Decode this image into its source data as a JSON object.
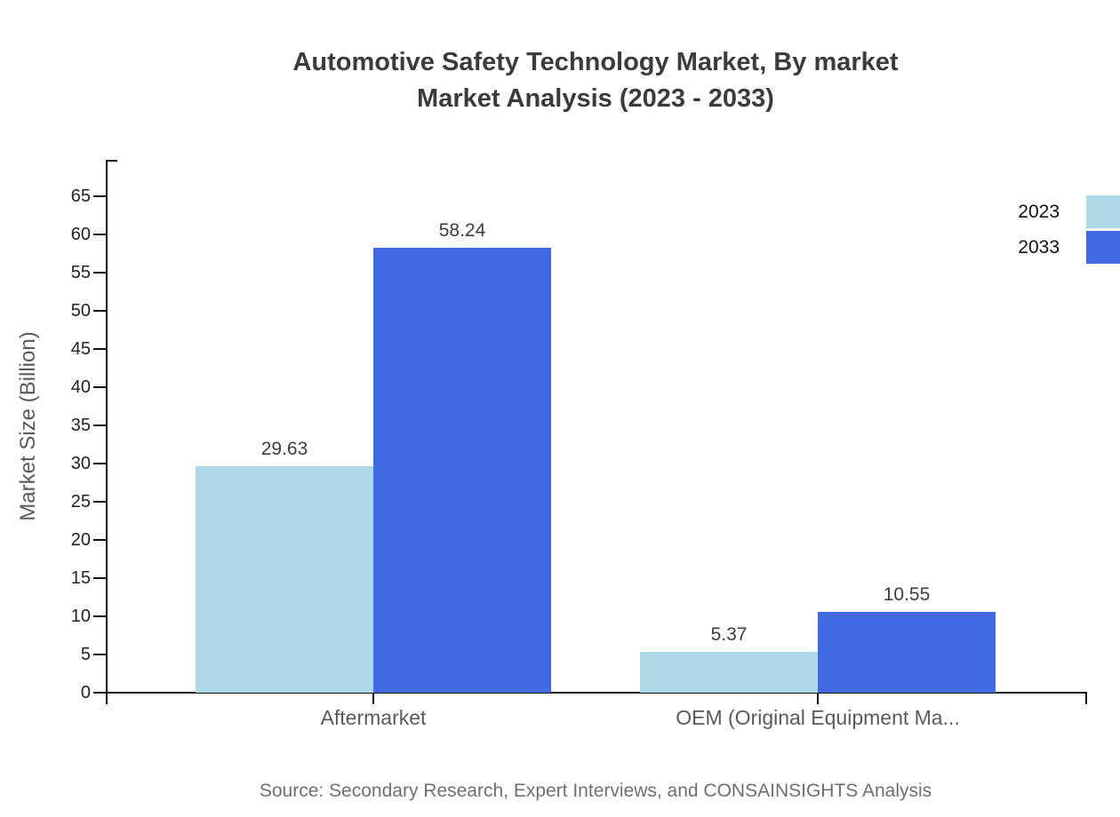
{
  "chart_data": {
    "type": "bar",
    "title": "Automotive Safety Technology Market, By market",
    "subtitle": "Market Analysis (2023 - 2033)",
    "ylabel": "Market Size (Billion)",
    "categories": [
      "Aftermarket",
      "OEM (Original Equipment Ma..."
    ],
    "series": [
      {
        "name": "2023",
        "color": "#ADD8E6",
        "values": [
          29.63,
          5.37
        ]
      },
      {
        "name": "2033",
        "color": "#4169E1",
        "values": [
          58.24,
          10.55
        ]
      }
    ],
    "value_labels": [
      [
        "29.63",
        "5.37"
      ],
      [
        "58.24",
        "10.55"
      ]
    ],
    "y_ticks": [
      0,
      5,
      10,
      15,
      20,
      25,
      30,
      35,
      40,
      45,
      50,
      55,
      60,
      65
    ],
    "ylim": [
      0,
      65
    ],
    "grid": false,
    "legend_position": "top-right",
    "source": "Source: Secondary Research, Expert Interviews, and CONSAINSIGHTS Analysis"
  },
  "colors": {
    "axis": "#111111",
    "title": "#3b3b3b",
    "ticks": "#222222",
    "labels": "#5a5a5a",
    "values": "#3d3d3d",
    "legend": "#111111",
    "source": "#6f6f6f"
  }
}
